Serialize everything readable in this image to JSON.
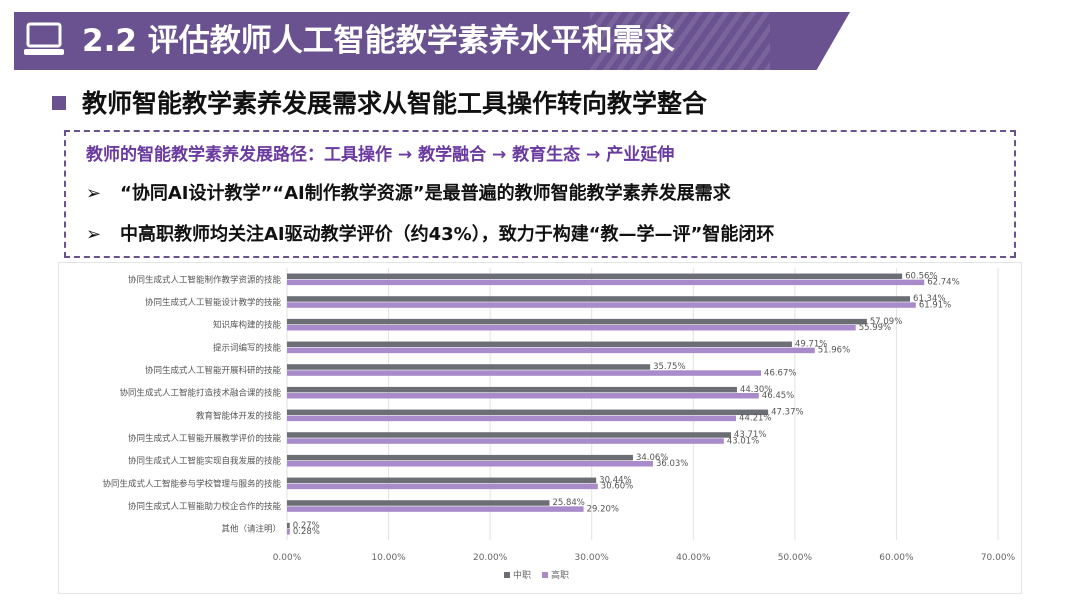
{
  "header": {
    "title": "2.2 评估教师人工智能教学素养水平和需求",
    "icon": "laptop-icon",
    "accent_color": "#6a5290"
  },
  "heading": "教师智能教学素养发展需求从智能工具操作转向教学整合",
  "info": {
    "path": "教师的智能教学素养发展路径：工具操作 → 教学融合 → 教育生态 → 产业延伸",
    "points": [
      {
        "marker": "➢",
        "text": "“协同AI设计教学”“AI制作教学资源”是最普遍的教师智能教学素养发展需求"
      },
      {
        "marker": "➢",
        "text": "中高职教师均关注AI驱动教学评价（约43%），致力于构建“教—学—评”智能闭环"
      }
    ]
  },
  "chart_data": {
    "type": "bar",
    "orientation": "horizontal",
    "categories": [
      "协同生成式人工智能制作教学资源的技能",
      "协同生成式人工智能设计教学的技能",
      "知识库构建的技能",
      "提示词编写的技能",
      "协同生成式人工智能开展科研的技能",
      "协同生成式人工智能打造技术融合课的技能",
      "教育智能体开发的技能",
      "协同生成式人工智能开展教学评价的技能",
      "协同生成式人工智能实现自我发展的技能",
      "协同生成式人工智能参与学校管理与服务的技能",
      "协同生成式人工智能助力校企合作的技能",
      "其他（请注明）"
    ],
    "series": [
      {
        "name": "中职",
        "color": "#6b6e74",
        "values": [
          60.56,
          61.34,
          57.09,
          49.71,
          35.75,
          44.3,
          47.37,
          43.71,
          34.06,
          30.44,
          25.84,
          0.27
        ],
        "labels": [
          "60.56%",
          "61.34%",
          "57.09%",
          "49.71%",
          "35.75%",
          "44.30%",
          "47.37%",
          "43.71%",
          "34.06%",
          "30.44%",
          "25.84%",
          "0.27%"
        ]
      },
      {
        "name": "高职",
        "color": "#a98bcb",
        "values": [
          62.74,
          61.91,
          55.99,
          51.96,
          46.67,
          46.45,
          44.21,
          43.01,
          36.03,
          30.6,
          29.2,
          0.28
        ],
        "labels": [
          "62.74%",
          "61.91%",
          "55.99%",
          "51.96%",
          "46.67%",
          "46.45%",
          "44.21%",
          "43.01%",
          "36.03%",
          "30.60%",
          "29.20%",
          "0.28%"
        ]
      }
    ],
    "xlim": [
      0,
      70
    ],
    "xticks": [
      0,
      10,
      20,
      30,
      40,
      50,
      60,
      70
    ],
    "xtick_labels": [
      "0.00%",
      "10.00%",
      "20.00%",
      "30.00%",
      "40.00%",
      "50.00%",
      "60.00%",
      "70.00%"
    ],
    "grid": true,
    "legend_position": "bottom"
  }
}
